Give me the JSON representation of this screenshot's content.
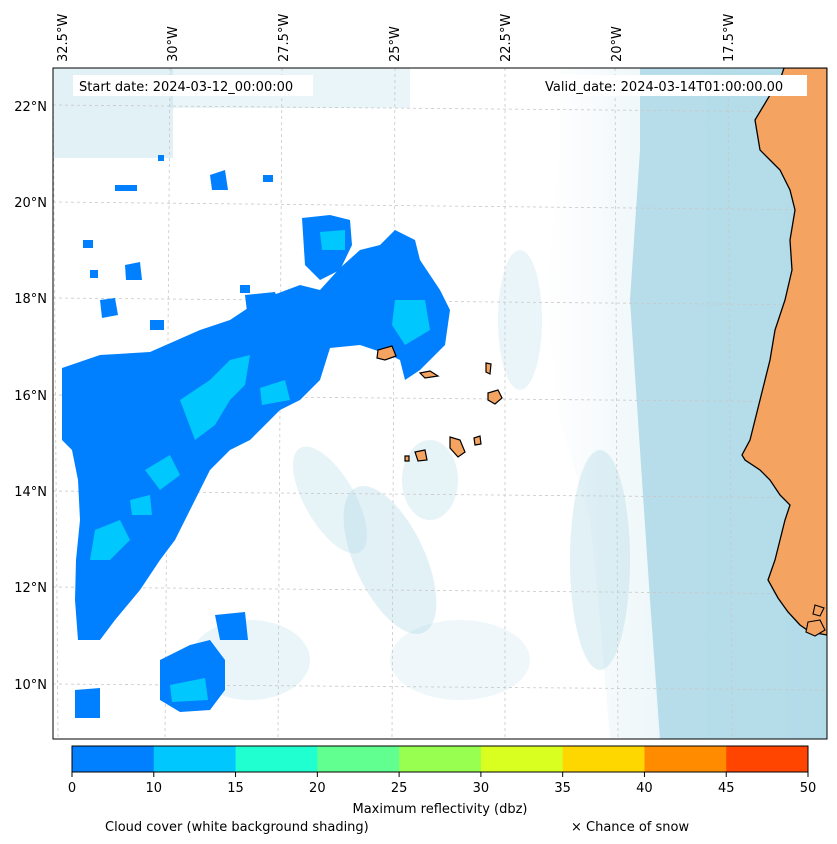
{
  "header": {
    "start_date": "Start date: 2024-03-12_00:00:00",
    "valid_date": "Valid_date: 2024-03-14T01:00:00.00"
  },
  "map": {
    "lon_labels": [
      "32.5°W",
      "30°W",
      "27.5°W",
      "25°W",
      "22.5°W",
      "20°W",
      "17.5°W"
    ],
    "lat_labels": [
      "22°N",
      "20°N",
      "18°N",
      "16°N",
      "14°N",
      "12°N",
      "10°N"
    ],
    "colors": {
      "ocean_cloud": "#add8e6",
      "land": "#f4a460",
      "refl_low": "#0080ff",
      "refl_mid": "#00c8ff"
    }
  },
  "colorbar": {
    "label": "Maximum reflectivity (dbz)",
    "ticks": [
      "0",
      "10",
      "15",
      "20",
      "25",
      "30",
      "35",
      "40",
      "45",
      "50"
    ],
    "colors": [
      "#0080ff",
      "#00c8ff",
      "#20ffd0",
      "#60ff90",
      "#98ff50",
      "#d8ff20",
      "#ffd700",
      "#ff8c00",
      "#ff4500"
    ]
  },
  "footer": {
    "cloud_note": "Cloud cover (white background shading)",
    "snow_note": "× Chance of snow"
  }
}
